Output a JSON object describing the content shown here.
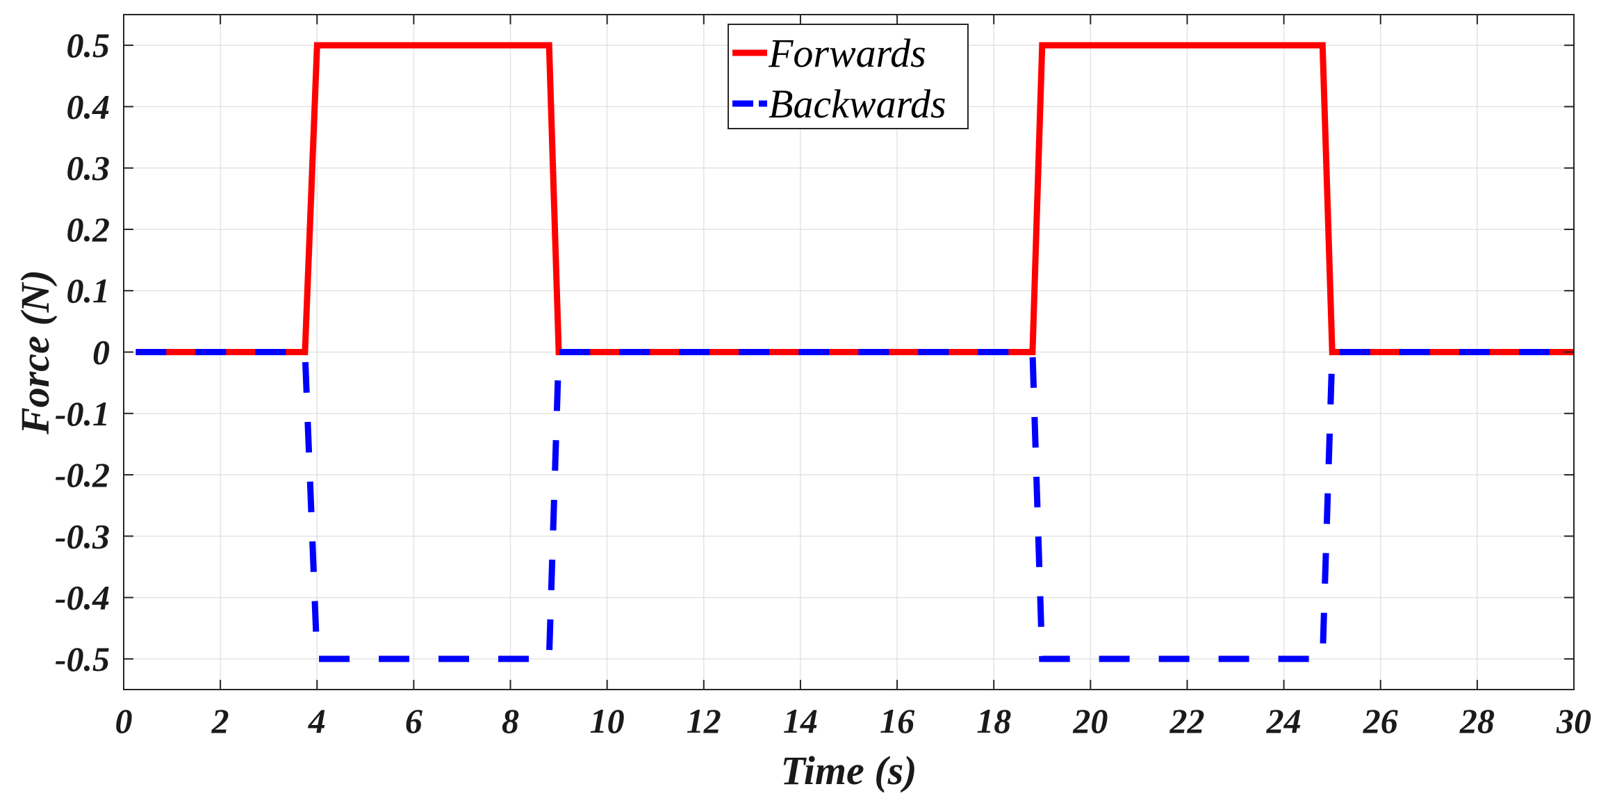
{
  "chart_data": {
    "type": "line",
    "title": "",
    "xlabel": "Time (s)",
    "ylabel": "Force (N)",
    "xlim": [
      0,
      30
    ],
    "ylim": [
      -0.55,
      0.55
    ],
    "xticks": [
      0,
      2,
      4,
      6,
      8,
      10,
      12,
      14,
      16,
      18,
      20,
      22,
      24,
      26,
      28,
      30
    ],
    "yticks": [
      0.5,
      0.4,
      0.3,
      0.2,
      0.1,
      0,
      -0.1,
      -0.2,
      -0.3,
      -0.4,
      -0.5
    ],
    "xtick_labels": [
      "0",
      "2",
      "4",
      "6",
      "8",
      "10",
      "12",
      "14",
      "16",
      "18",
      "20",
      "22",
      "24",
      "26",
      "28",
      "30"
    ],
    "ytick_labels": [
      "0.5",
      "0.4",
      "0.3",
      "0.2",
      "0.1",
      "0",
      "-0.1",
      "-0.2",
      "-0.3",
      "-0.4",
      "-0.5"
    ],
    "grid": true,
    "legend_position": "top-center",
    "series": [
      {
        "name": "Forwards",
        "color": "#ff0000",
        "style": "solid",
        "x": [
          0.25,
          3.75,
          4.0,
          8.8,
          9.0,
          18.8,
          19.0,
          24.8,
          25.0,
          30.0
        ],
        "y": [
          0,
          0,
          0.5,
          0.5,
          0,
          0,
          0.5,
          0.5,
          0,
          0
        ]
      },
      {
        "name": "Backwards",
        "color": "#0000ff",
        "style": "dashed",
        "x": [
          0.25,
          3.75,
          4.0,
          8.8,
          9.0,
          18.8,
          19.0,
          24.8,
          25.0,
          30.0
        ],
        "y": [
          0,
          0,
          -0.5,
          -0.5,
          0,
          0,
          -0.5,
          -0.5,
          0,
          0
        ]
      }
    ]
  }
}
